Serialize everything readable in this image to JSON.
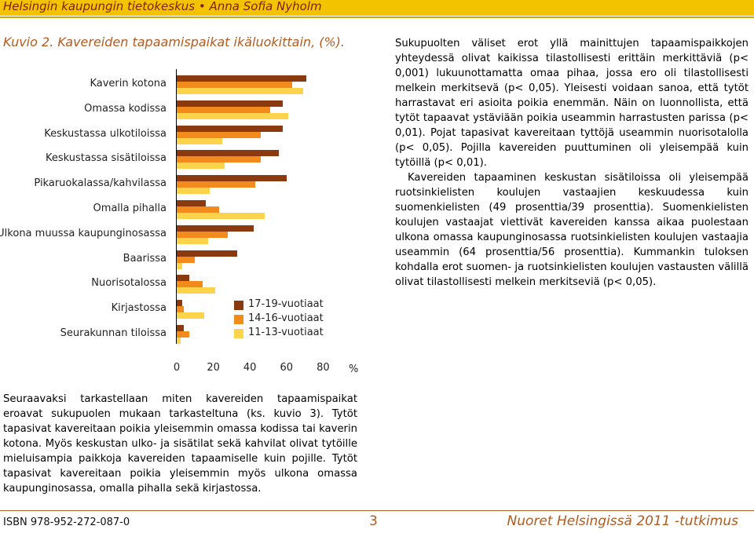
{
  "header": {
    "text": "Helsingin kaupungin tietokeskus • Anna Sofia Nyholm"
  },
  "figure_title": "Kuvio 2. Kavereiden tapaamispaikat ikäluokittain, (%).",
  "chart_data": {
    "type": "bar",
    "orientation": "horizontal",
    "categories": [
      "Kaverin kotona",
      "Omassa kodissa",
      "Keskustassa ulkotiloissa",
      "Keskustassa sisätiloissa",
      "Pikaruokalassa/kahvilassa",
      "Omalla pihalla",
      "Ulkona muussa kaupunginosassa",
      "Baarissa",
      "Nuorisotalossa",
      "Kirjastossa",
      "Seurakunnan tiloissa"
    ],
    "series": [
      {
        "name": "17-19-vuotiaat",
        "color": "#8b3a0f",
        "values": [
          71,
          58,
          58,
          56,
          60,
          16,
          42,
          33,
          7,
          3,
          4
        ]
      },
      {
        "name": "14-16-vuotiaat",
        "color": "#f28a1c",
        "values": [
          63,
          51,
          46,
          46,
          43,
          23,
          28,
          10,
          14,
          4,
          7
        ]
      },
      {
        "name": "11-13-vuotiaat",
        "color": "#fcd34a",
        "values": [
          69,
          61,
          25,
          26,
          18,
          48,
          17,
          3,
          21,
          15,
          2
        ]
      }
    ],
    "xlim": [
      0,
      80
    ],
    "xticks": [
      "0",
      "20",
      "40",
      "60",
      "80"
    ],
    "unit": "%",
    "legend_position": "bottom-right"
  },
  "right_text": [
    "Sukupuolten väliset erot yllä mainittujen tapaamispaikkojen yhteydessä olivat kaikissa tilastollisesti erittäin merkittäviä (p< 0,001) lukuunottamatta omaa pihaa, jossa ero oli tilastollisesti melkein merkitsevä (p< 0,05). Yleisesti voidaan sanoa, että tytöt harrastavat eri asioita poikia enemmän. Näin on luonnollista, että tytöt tapaavat ystäviään poikia useammin harrastusten parissa (p< 0,01). Pojat tapasivat kavereitaan tyttöjä useammin nuorisotalolla (p< 0,05). Pojilla kavereiden puuttuminen oli yleisempää kuin tytöillä (p< 0,01).",
    "Kavereiden tapaaminen keskustan sisätiloissa oli yleisempää ruotsinkielisten koulujen vastaajien keskuudessa kuin suomenkielisten (49 prosenttia/39 prosenttia). Suomenkielisten koulujen vastaajat viettivät kavereiden kanssa aikaa puolestaan ulkona omassa kaupunginosassa ruotsinkielisten koulujen vastaajia useammin (64 prosenttia/56 prosenttia). Kummankin tuloksen kohdalla erot suomen- ja ruotsinkielisten koulujen vastausten välillä olivat tilastollisesti melkein merkitseviä (p< 0,05)."
  ],
  "bottom_text": "Seuraavaksi tarkastellaan miten kavereiden tapaamispaikat eroavat sukupuolen mukaan tarkasteltuna (ks. kuvio 3). Tytöt tapasivat kavereitaan poikia yleisemmin omassa kodissa tai kaverin kotona. Myös keskustan ulko- ja sisätilat sekä kahvilat olivat tytöille mieluisampia paikkoja kavereiden tapaamiselle kuin pojille. Tytöt tapasivat kavereitaan poikia yleisemmin myös ulkona omassa kaupunginosassa, omalla pihalla sekä kirjastossa.",
  "footer": {
    "isbn": "ISBN 978-952-272-087-0",
    "page": "3",
    "publication": "Nuoret Helsingissä 2011 -tutkimus"
  }
}
